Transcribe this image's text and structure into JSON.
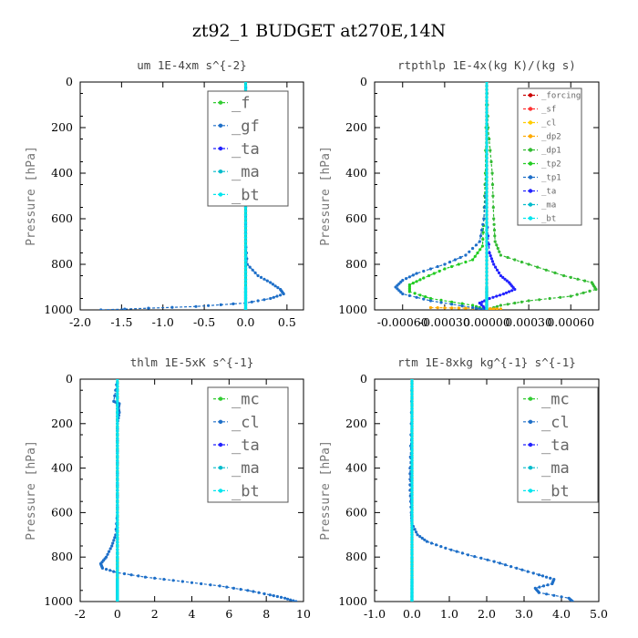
{
  "page": {
    "title": "zt92_1  BUDGET at270E,14N"
  },
  "chart_data": [
    {
      "type": "line",
      "title": "um  1E-4xm s^{-2}",
      "ylabel": "Pressure [hPa]",
      "xlim": [
        -2.0,
        0.7
      ],
      "ylim": [
        1000,
        0
      ],
      "xticks": [
        -2.0,
        -1.5,
        -1.0,
        -0.5,
        0.0,
        0.5
      ],
      "xticklabels": [
        "-2.0",
        "-1.5",
        "-1.0",
        "-0.5",
        "0.0",
        "0.5"
      ],
      "yticks": [
        0,
        200,
        400,
        600,
        800,
        1000
      ],
      "yticklabels": [
        "0",
        "200",
        "400",
        "600",
        "800",
        "1000"
      ],
      "legend_small": false,
      "legend": [
        "_f",
        "_gf",
        "_ta",
        "_ma",
        "_bt"
      ],
      "series": [
        {
          "name": "_f",
          "color": "#33cc33",
          "p": [
            0,
            150,
            300,
            450,
            600,
            700,
            800,
            900,
            1000
          ],
          "x": [
            0,
            0,
            0,
            0,
            0,
            0,
            0,
            0,
            0
          ]
        },
        {
          "name": "_gf",
          "color": "#1e6fc8",
          "p": [
            0,
            100,
            150,
            200,
            400,
            550,
            700,
            800,
            850,
            880,
            910,
            930,
            950,
            970,
            985,
            1000
          ],
          "x": [
            0,
            0.01,
            0.03,
            0.01,
            0,
            0,
            0,
            0.02,
            0.15,
            0.3,
            0.42,
            0.46,
            0.3,
            0.0,
            -0.6,
            -1.75
          ]
        },
        {
          "name": "_ta",
          "color": "#2222ff",
          "p": [
            0,
            300,
            600,
            900,
            1000
          ],
          "x": [
            0,
            0,
            0,
            0,
            0
          ]
        },
        {
          "name": "_ma",
          "color": "#00bbcc",
          "p": [
            0,
            300,
            600,
            900,
            1000
          ],
          "x": [
            0,
            0,
            0,
            0,
            0
          ]
        },
        {
          "name": "_bt",
          "color": "#00e5ee",
          "p": [
            0,
            300,
            600,
            900,
            1000
          ],
          "x": [
            0,
            0,
            0,
            0,
            0
          ]
        }
      ]
    },
    {
      "type": "line",
      "title": "rtpthlp  1E-4x(kg K)/(kg s)",
      "ylabel": "Pressure [hPa]",
      "xlim": [
        -0.0008,
        0.0008
      ],
      "ylim": [
        1000,
        0
      ],
      "xticks": [
        -0.0006,
        -0.0003,
        0.0,
        0.0003,
        0.0006
      ],
      "xticklabels": [
        "-0.00060",
        "-0.00030",
        "0.00000",
        "0.00030",
        "0.00060"
      ],
      "yticks": [
        0,
        200,
        400,
        600,
        800,
        1000
      ],
      "yticklabels": [
        "0",
        "200",
        "400",
        "600",
        "800",
        "1000"
      ],
      "legend_small": true,
      "legend": [
        "_forcing",
        "_sf",
        "_cl",
        "_dp2",
        "_dp1",
        "_tp2",
        "_tp1",
        "_ta",
        "_ma",
        "_bt"
      ],
      "series": [
        {
          "name": "_dp1",
          "color": "#33bb33",
          "p": [
            0,
            200,
            400,
            600,
            700,
            760,
            800,
            850,
            880,
            910,
            940,
            960,
            980,
            1000
          ],
          "x": [
            0,
            1e-05,
            4e-05,
            5e-05,
            6e-05,
            0.0001,
            0.0003,
            0.00055,
            0.00075,
            0.00078,
            0.0006,
            0.0003,
            0.0001,
            0
          ]
        },
        {
          "name": "_dp2",
          "color": "#ffaa00",
          "p": [
            990,
            992,
            994,
            996,
            998,
            1000
          ],
          "x": [
            -0.0004,
            -0.0002,
            0.0,
            0.0001,
            0.0,
            0
          ]
        },
        {
          "name": "_tp2",
          "color": "#22cc22",
          "p": [
            0,
            400,
            600,
            720,
            780,
            820,
            860,
            890,
            920,
            950,
            980,
            1000
          ],
          "x": [
            0,
            -1e-05,
            -2e-05,
            -3e-05,
            -0.0001,
            -0.0003,
            -0.00045,
            -0.00055,
            -0.00055,
            -0.0004,
            -0.0001,
            0
          ]
        },
        {
          "name": "_tp1",
          "color": "#1e6fc8",
          "p": [
            0,
            400,
            600,
            700,
            760,
            800,
            840,
            870,
            900,
            930,
            960,
            990,
            1000
          ],
          "x": [
            0,
            0,
            -2e-05,
            -5e-05,
            -0.00015,
            -0.0003,
            -0.0005,
            -0.0006,
            -0.00065,
            -0.0006,
            -0.0004,
            -0.0001,
            0
          ]
        },
        {
          "name": "_ta",
          "color": "#2222ff",
          "p": [
            0,
            600,
            750,
            800,
            850,
            880,
            910,
            930,
            950,
            970,
            1000
          ],
          "x": [
            0,
            0,
            2e-05,
            5e-05,
            0.0001,
            0.00016,
            0.0002,
            0.00012,
            2e-05,
            -5e-05,
            0
          ]
        },
        {
          "name": "_forcing",
          "color": "#cc0000",
          "p": [
            0,
            300,
            600,
            900,
            1000
          ],
          "x": [
            0,
            0,
            0,
            0,
            0
          ]
        },
        {
          "name": "_sf",
          "color": "#ff3333",
          "p": [
            0,
            300,
            600,
            900,
            1000
          ],
          "x": [
            0,
            0,
            0,
            0,
            0
          ]
        },
        {
          "name": "_cl",
          "color": "#ffcc00",
          "p": [
            0,
            300,
            600,
            900,
            1000
          ],
          "x": [
            0,
            0,
            0,
            0,
            0
          ]
        },
        {
          "name": "_ma",
          "color": "#00bbcc",
          "p": [
            0,
            300,
            600,
            900,
            1000
          ],
          "x": [
            0,
            0,
            0,
            0,
            0
          ]
        },
        {
          "name": "_bt",
          "color": "#00e5ee",
          "p": [
            0,
            300,
            600,
            900,
            1000
          ],
          "x": [
            0,
            0,
            0,
            0,
            0
          ]
        }
      ]
    },
    {
      "type": "line",
      "title": "thlm  1E-5xK s^{-1}",
      "ylabel": "Pressure [hPa]",
      "xlim": [
        -2,
        10
      ],
      "ylim": [
        1000,
        0
      ],
      "xticks": [
        -2,
        0,
        2,
        4,
        6,
        8,
        10
      ],
      "xticklabels": [
        "-2",
        "0",
        "2",
        "4",
        "6",
        "8",
        "10"
      ],
      "yticks": [
        0,
        200,
        400,
        600,
        800,
        1000
      ],
      "yticklabels": [
        "0",
        "200",
        "400",
        "600",
        "800",
        "1000"
      ],
      "legend_small": false,
      "legend": [
        "_mc",
        "_cl",
        "_ta",
        "_ma",
        "_bt"
      ],
      "series": [
        {
          "name": "_mc",
          "color": "#33cc33",
          "p": [
            0,
            200,
            400,
            600,
            800,
            900,
            1000
          ],
          "x": [
            0,
            0,
            0,
            0,
            0,
            0,
            0
          ]
        },
        {
          "name": "_cl",
          "color": "#1e6fc8",
          "p": [
            0,
            100,
            110,
            130,
            150,
            200,
            300,
            400,
            500,
            600,
            700,
            750,
            800,
            830,
            850,
            870,
            890,
            910,
            930,
            950,
            970,
            985,
            1000
          ],
          "x": [
            0,
            -0.2,
            0.1,
            0.05,
            0.1,
            0.0,
            0,
            0,
            0,
            0,
            -0.1,
            -0.3,
            -0.6,
            -0.9,
            -0.8,
            0.0,
            1.5,
            3.5,
            5.5,
            7.0,
            8.2,
            9.0,
            9.6
          ]
        },
        {
          "name": "_ta",
          "color": "#2222ff",
          "p": [
            0,
            300,
            600,
            900,
            1000
          ],
          "x": [
            0,
            0,
            0,
            0,
            0
          ]
        },
        {
          "name": "_ma",
          "color": "#00bbcc",
          "p": [
            0,
            300,
            600,
            900,
            1000
          ],
          "x": [
            0,
            0,
            0,
            0,
            0
          ]
        },
        {
          "name": "_bt",
          "color": "#00e5ee",
          "p": [
            0,
            300,
            600,
            900,
            1000
          ],
          "x": [
            0,
            0,
            0,
            0,
            0
          ]
        }
      ]
    },
    {
      "type": "line",
      "title": "rtm  1E-8xkg kg^{-1} s^{-1}",
      "ylabel": "Pressure [hPa]",
      "xlim": [
        -1.0,
        5.0
      ],
      "ylim": [
        1000,
        0
      ],
      "xticks": [
        -1.0,
        0.0,
        1.0,
        2.0,
        3.0,
        4.0,
        5.0
      ],
      "xticklabels": [
        "-1.0",
        "0.0",
        "1.0",
        "2.0",
        "3.0",
        "4.0",
        "5.0"
      ],
      "yticks": [
        0,
        200,
        400,
        600,
        800,
        1000
      ],
      "yticklabels": [
        "0",
        "200",
        "400",
        "600",
        "800",
        "1000"
      ],
      "legend_small": false,
      "legend": [
        "_mc",
        "_cl",
        "_ta",
        "_ma",
        "_bt"
      ],
      "series": [
        {
          "name": "_mc",
          "color": "#33cc33",
          "p": [
            0,
            200,
            400,
            600,
            800,
            900,
            1000
          ],
          "x": [
            0,
            0,
            0,
            0,
            0,
            0,
            0
          ]
        },
        {
          "name": "_cl",
          "color": "#1e6fc8",
          "p": [
            0,
            200,
            400,
            500,
            600,
            650,
            700,
            730,
            760,
            790,
            820,
            850,
            880,
            900,
            920,
            940,
            960,
            985,
            1000
          ],
          "x": [
            0,
            -0.02,
            -0.05,
            -0.05,
            -0.02,
            0.0,
            0.15,
            0.4,
            0.9,
            1.5,
            2.2,
            2.8,
            3.4,
            3.8,
            3.75,
            3.3,
            3.4,
            4.2,
            4.3
          ]
        },
        {
          "name": "_ta",
          "color": "#2222ff",
          "p": [
            0,
            300,
            600,
            900,
            1000
          ],
          "x": [
            0,
            0,
            0,
            0,
            0
          ]
        },
        {
          "name": "_ma",
          "color": "#00bbcc",
          "p": [
            0,
            300,
            600,
            900,
            1000
          ],
          "x": [
            0,
            0,
            0,
            0,
            0
          ]
        },
        {
          "name": "_bt",
          "color": "#00e5ee",
          "p": [
            0,
            300,
            600,
            900,
            1000
          ],
          "x": [
            0,
            0,
            0,
            0,
            0
          ]
        }
      ]
    }
  ]
}
